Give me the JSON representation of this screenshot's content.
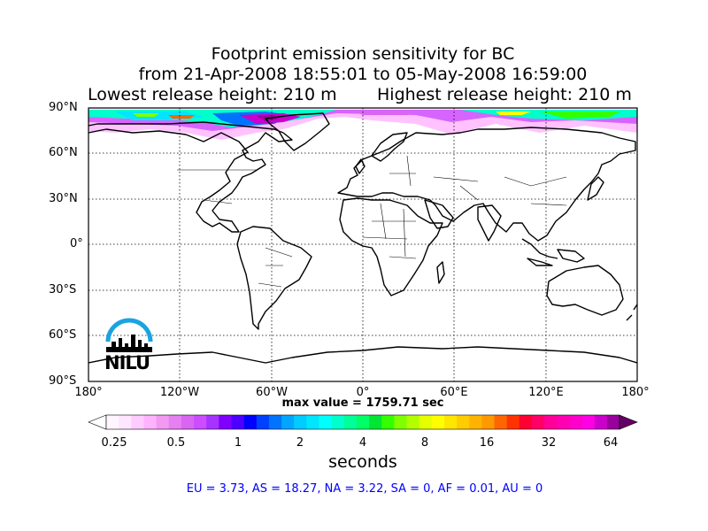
{
  "title": {
    "line1": "Footprint emission sensitivity for BC",
    "line2": "from 21-Apr-2008 18:55:01 to 05-May-2008 16:59:00",
    "line3_left": "Lowest release height: 210 m",
    "line3_right": "Highest release height: 210 m"
  },
  "map": {
    "lat_labels": [
      "90°N",
      "60°N",
      "30°N",
      "0°",
      "30°S",
      "60°S",
      "90°S"
    ],
    "lon_labels": [
      "180°",
      "120°W",
      "60°W",
      "0°",
      "60°E",
      "120°E",
      "180°"
    ],
    "max_value": "max value = 1759.71 sec",
    "logo_text": "NILU"
  },
  "colorbar": {
    "tick_labels": [
      "0.25",
      "0.5",
      "1",
      "2",
      "4",
      "8",
      "16",
      "32",
      "64"
    ],
    "unit": "seconds",
    "colors": [
      "#fff5ff",
      "#ffe6ff",
      "#ffccff",
      "#ffb3ff",
      "#f299f2",
      "#e680f2",
      "#d966f2",
      "#cc4dff",
      "#a633ff",
      "#8000ff",
      "#4d00ff",
      "#0000ff",
      "#0040ff",
      "#0073ff",
      "#00a6ff",
      "#00ccff",
      "#00e6ff",
      "#00ffff",
      "#00ffcc",
      "#00ff99",
      "#00ff66",
      "#00e633",
      "#33ff00",
      "#80ff00",
      "#b3ff00",
      "#e6ff00",
      "#ffff00",
      "#ffe600",
      "#ffcc00",
      "#ffb300",
      "#ff9900",
      "#ff6600",
      "#ff3300",
      "#ff0033",
      "#ff0066",
      "#ff0099",
      "#ff00b3",
      "#ff00cc",
      "#ff00e6",
      "#cc00cc",
      "#99009e"
    ]
  },
  "stats": "EU = 3.73,  AS = 18.27,  NA = 3.22,  SA = 0,  AF = 0.01,  AU = 0"
}
